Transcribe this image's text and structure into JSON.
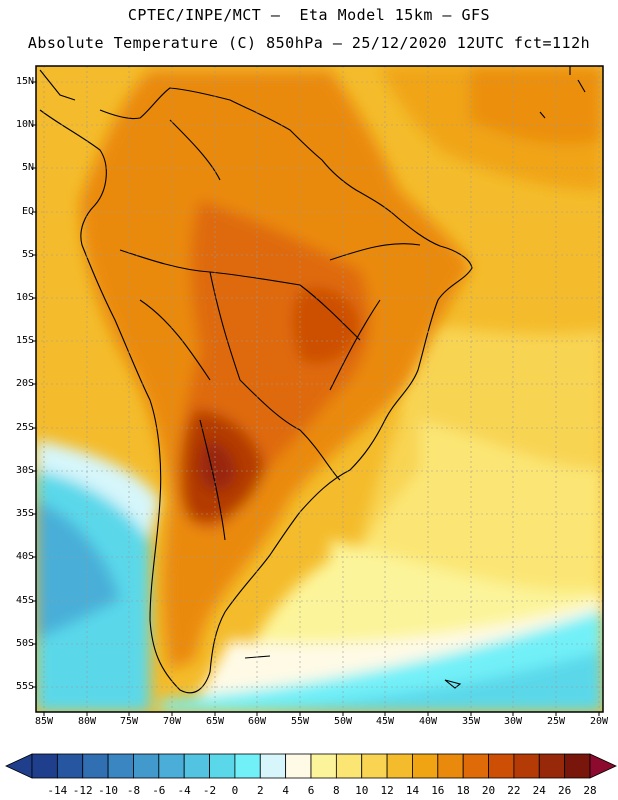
{
  "title": {
    "line1": "CPTEC/INPE/MCT –  Eta Model 15km – GFS",
    "line2": "Absolute Temperature (C) 850hPa – 25/12/2020 12UTC fct=112h"
  },
  "map": {
    "lat_labels": [
      "15N",
      "10N",
      "5N",
      "EQ",
      "5S",
      "10S",
      "15S",
      "20S",
      "25S",
      "30S",
      "35S",
      "40S",
      "45S",
      "50S",
      "55S"
    ],
    "lon_labels": [
      "85W",
      "80W",
      "75W",
      "70W",
      "65W",
      "60W",
      "55W",
      "50W",
      "45W",
      "40W",
      "35W",
      "30W",
      "25W",
      "20W"
    ],
    "region": "South America"
  },
  "colorbar": {
    "labels": [
      "-14",
      "-12",
      "-10",
      "-8",
      "-6",
      "-4",
      "-2",
      "0",
      "2",
      "4",
      "6",
      "8",
      "10",
      "12",
      "14",
      "16",
      "18",
      "20",
      "22",
      "24",
      "26",
      "28"
    ],
    "colors": [
      "#1f3e8c",
      "#2656a0",
      "#2f6fb2",
      "#3a86c2",
      "#4299cc",
      "#4aaed8",
      "#52c4e2",
      "#5ad8ea",
      "#72f0f8",
      "#d6f6fb",
      "#fefae6",
      "#fcf49a",
      "#fbe674",
      "#f8d452",
      "#f4bc2c",
      "#f0a414",
      "#ea8a0c",
      "#df6a08",
      "#cd4f06",
      "#b43a06",
      "#98280a",
      "#78160c"
    ]
  }
}
